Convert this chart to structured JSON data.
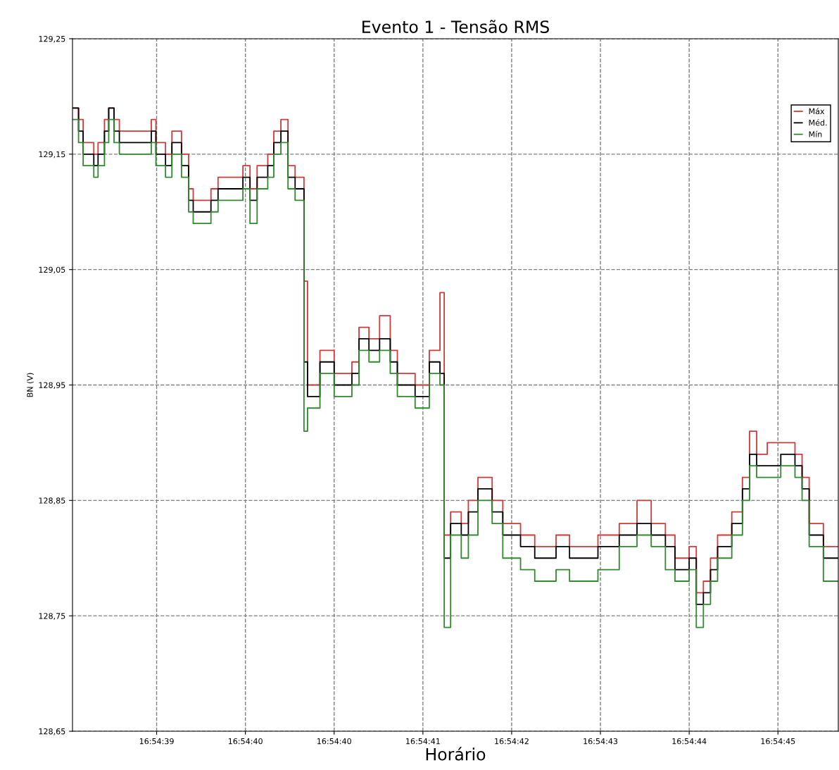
{
  "chart_data": {
    "type": "step",
    "title": "Evento 1 - Tensão RMS",
    "xlabel": "Horário",
    "ylabel": "BN (V)",
    "x": [
      16.910499,
      16.910516,
      16.910529,
      16.910559,
      16.910571,
      16.910589,
      16.910601,
      16.910616,
      16.910631,
      16.910721,
      16.910734,
      16.910761,
      16.910779,
      16.910806,
      16.910826,
      16.910839,
      16.910889,
      16.910909,
      16.910949,
      16.910979,
      16.910999,
      16.911019,
      16.911049,
      16.911066,
      16.911086,
      16.911106,
      16.911126,
      16.911151,
      16.911161,
      16.911196,
      16.911236,
      16.911286,
      16.911306,
      16.911334,
      16.911364,
      16.911394,
      16.911414,
      16.911464,
      16.911504,
      16.911534,
      16.911546,
      16.911564,
      16.911594,
      16.911614,
      16.911641,
      16.911681,
      16.911711,
      16.911761,
      16.911801,
      16.911861,
      16.911899,
      16.911979,
      16.912039,
      16.912089,
      16.912129,
      16.912169,
      16.912196,
      16.912236,
      16.912256,
      16.912276,
      16.912296,
      16.912316,
      16.912356,
      16.912386,
      16.912406,
      16.912426,
      16.912456,
      16.912494,
      16.912534,
      16.912554,
      16.912574,
      16.912614,
      16.912656
    ],
    "series": [
      {
        "name": "Máx",
        "color": "#d03a3a",
        "values": [
          129.19,
          129.18,
          129.16,
          129.15,
          129.16,
          129.18,
          129.19,
          129.18,
          129.17,
          129.18,
          129.16,
          129.15,
          129.17,
          129.15,
          129.12,
          129.11,
          129.12,
          129.13,
          129.13,
          129.14,
          129.12,
          129.14,
          129.15,
          129.17,
          129.18,
          129.14,
          129.13,
          129.04,
          128.95,
          128.98,
          128.96,
          128.97,
          129.0,
          128.99,
          129.01,
          128.98,
          128.96,
          128.95,
          128.98,
          129.03,
          128.82,
          128.84,
          128.83,
          128.85,
          128.87,
          128.85,
          128.83,
          128.82,
          128.81,
          128.82,
          128.81,
          128.82,
          128.83,
          128.85,
          128.83,
          128.82,
          128.8,
          128.81,
          128.77,
          128.78,
          128.8,
          128.82,
          128.84,
          128.87,
          128.91,
          128.89,
          128.9,
          128.9,
          128.89,
          128.87,
          128.83,
          128.81,
          128.81
        ]
      },
      {
        "name": "Méd.",
        "color": "#000000",
        "values": [
          129.19,
          129.17,
          129.15,
          129.14,
          129.15,
          129.17,
          129.19,
          129.17,
          129.16,
          129.17,
          129.15,
          129.14,
          129.16,
          129.14,
          129.11,
          129.1,
          129.11,
          129.12,
          129.12,
          129.13,
          129.11,
          129.13,
          129.14,
          129.16,
          129.17,
          129.13,
          129.12,
          128.97,
          128.94,
          128.97,
          128.95,
          128.96,
          128.99,
          128.98,
          128.99,
          128.97,
          128.95,
          128.94,
          128.97,
          128.96,
          128.8,
          128.83,
          128.82,
          128.84,
          128.86,
          128.84,
          128.82,
          128.81,
          128.8,
          128.81,
          128.8,
          128.81,
          128.82,
          128.83,
          128.82,
          128.81,
          128.79,
          128.8,
          128.76,
          128.77,
          128.79,
          128.81,
          128.83,
          128.86,
          128.89,
          128.88,
          128.88,
          128.89,
          128.88,
          128.86,
          128.82,
          128.8,
          128.8
        ]
      },
      {
        "name": "Mín",
        "color": "#2e8b2e",
        "values": [
          129.18,
          129.16,
          129.14,
          129.13,
          129.14,
          129.16,
          129.18,
          129.16,
          129.15,
          129.16,
          129.14,
          129.13,
          129.15,
          129.13,
          129.1,
          129.09,
          129.1,
          129.11,
          129.11,
          129.12,
          129.09,
          129.12,
          129.13,
          129.15,
          129.16,
          129.12,
          129.11,
          128.91,
          128.93,
          128.96,
          128.94,
          128.95,
          128.98,
          128.97,
          128.98,
          128.96,
          128.94,
          128.93,
          128.96,
          128.95,
          128.74,
          128.82,
          128.8,
          128.82,
          128.85,
          128.83,
          128.8,
          128.79,
          128.78,
          128.79,
          128.78,
          128.79,
          128.81,
          128.82,
          128.81,
          128.79,
          128.78,
          128.79,
          128.74,
          128.76,
          128.78,
          128.8,
          128.82,
          128.85,
          128.88,
          128.87,
          128.87,
          128.88,
          128.87,
          128.85,
          128.81,
          128.78,
          128.78
        ]
      }
    ],
    "xlim": [
      16.910499,
      16.912656
    ],
    "xticks": [
      {
        "value": 16.910736,
        "label": "16:54:39"
      },
      {
        "value": 16.910986,
        "label": "16:54:40"
      },
      {
        "value": 16.911236,
        "label": "16:54:40"
      },
      {
        "value": 16.911486,
        "label": "16:54:41"
      },
      {
        "value": 16.911736,
        "label": "16:54:42"
      },
      {
        "value": 16.911986,
        "label": "16:54:43"
      },
      {
        "value": 16.912236,
        "label": "16:54:44"
      },
      {
        "value": 16.912486,
        "label": "16:54:45"
      }
    ],
    "ylim": [
      128.65,
      129.25
    ],
    "yticks": [
      {
        "value": 128.65,
        "label": "128,65"
      },
      {
        "value": 128.75,
        "label": "128,75"
      },
      {
        "value": 128.85,
        "label": "128,85"
      },
      {
        "value": 128.95,
        "label": "128,95"
      },
      {
        "value": 129.05,
        "label": "129,05"
      },
      {
        "value": 129.15,
        "label": "129,15"
      },
      {
        "value": 129.25,
        "label": "129,25"
      }
    ],
    "grid": true,
    "legend": "top right",
    "line_style": "solid"
  }
}
